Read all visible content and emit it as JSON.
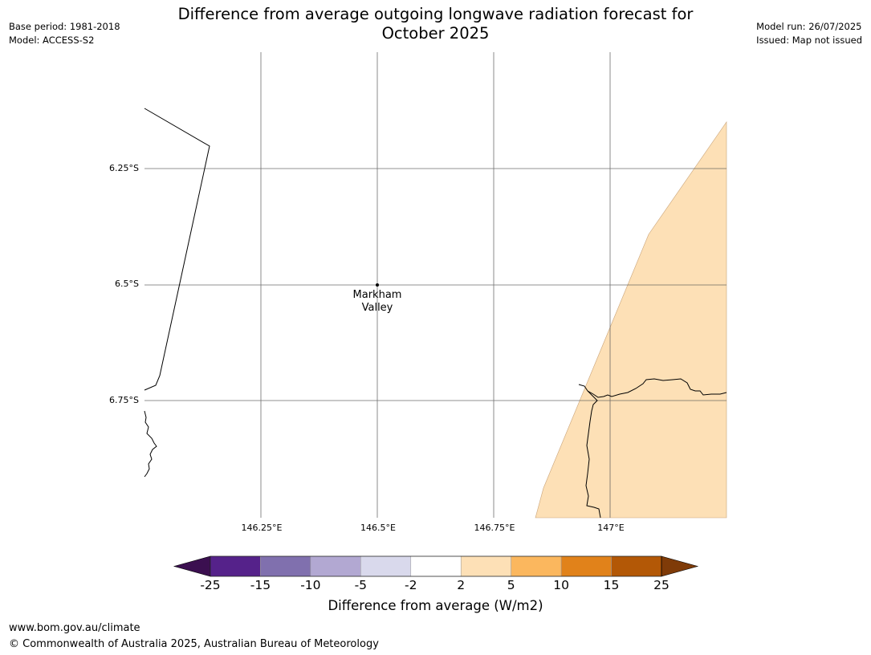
{
  "title": "Difference from average outgoing longwave radiation forecast for\nOctober 2025",
  "meta_left": [
    "Base period: 1981-2018",
    "Model: ACCESS-S2"
  ],
  "meta_right": [
    "Model run: 26/07/2025",
    "Issued: Map not issued"
  ],
  "map": {
    "lat_labels": [
      "6.25°S",
      "6.5°S",
      "6.75°S"
    ],
    "lon_labels": [
      "146.25°E",
      "146.5°E",
      "146.75°E",
      "147°E"
    ],
    "place": {
      "name_lines": [
        "Markham",
        "Valley"
      ],
      "lon": 146.5,
      "lat": -6.5
    },
    "shaded_region_color": "#fde0b6",
    "shaded_region_value_range": [
      2,
      5
    ]
  },
  "colorbar": {
    "ticks": [
      "-25",
      "-15",
      "-10",
      "-5",
      "-2",
      "2",
      "5",
      "10",
      "15",
      "25"
    ],
    "colors": [
      "#3b0f50",
      "#55228a",
      "#8070ae",
      "#b2a8d2",
      "#d9d9ec",
      "#ffffff",
      "#fde0b6",
      "#fbb75e",
      "#e1821a",
      "#b35806",
      "#7f3b08"
    ],
    "label": "Difference from average (W/m2)"
  },
  "footer": {
    "url": "www.bom.gov.au/climate",
    "copyright": "© Commonwealth of Australia 2025, Australian Bureau of Meteorology"
  }
}
